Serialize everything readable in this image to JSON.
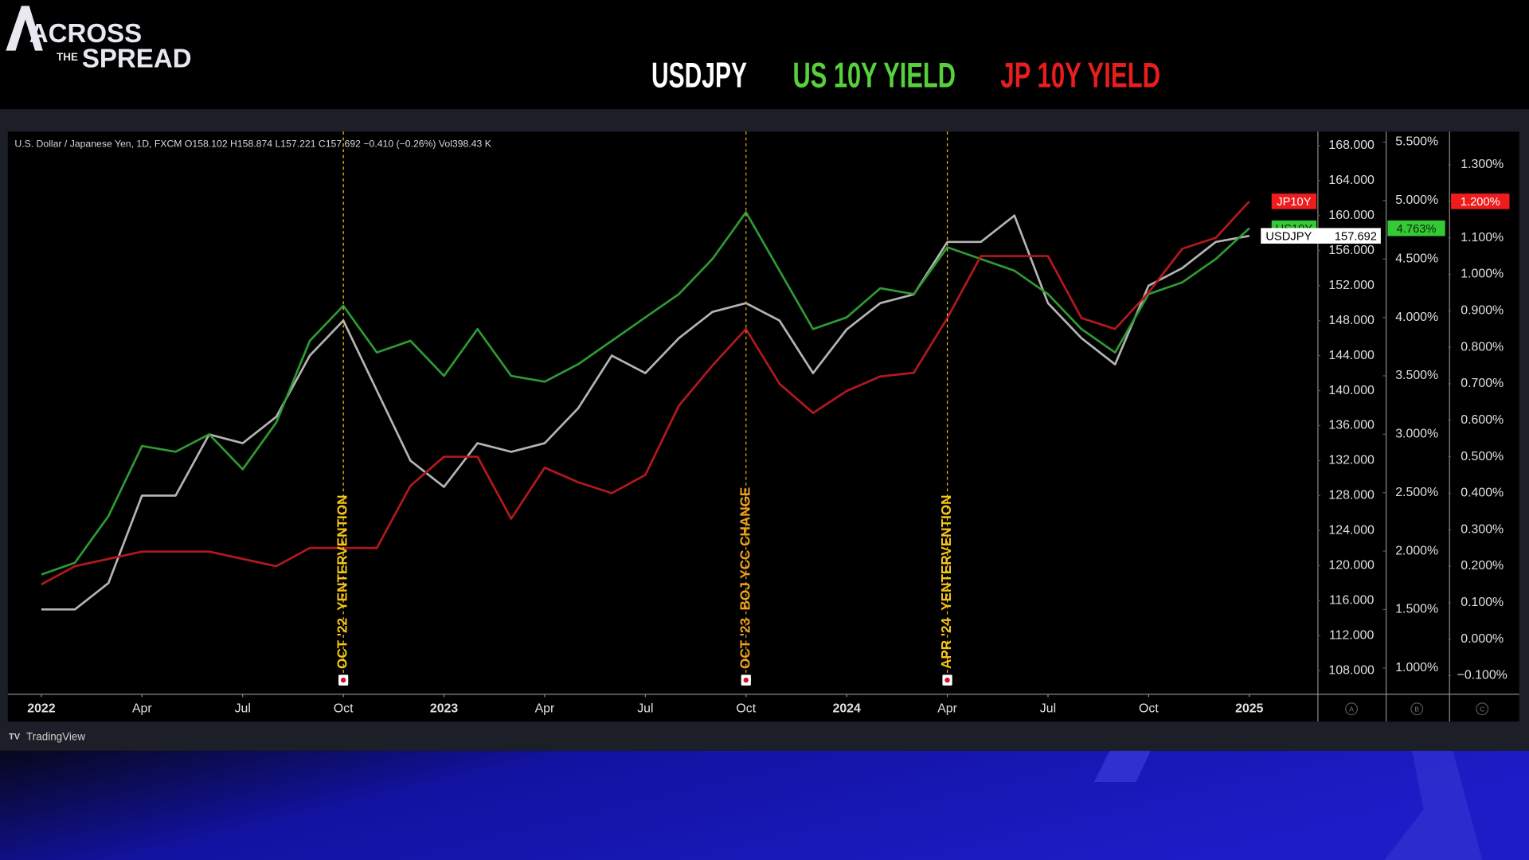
{
  "logo": {
    "line1": "ACROSS",
    "line2": "THE",
    "line3": "SPREAD"
  },
  "footer": "TradingView",
  "chart_data": {
    "type": "line",
    "info": "U.S. Dollar / Japanese Yen, 1D, FXCM  O158.102  H158.874  L157.221  C157.692  −0.410 (−0.26%)  Vol398.43 K",
    "x": [
      "2022-01",
      "2022-02",
      "2022-03",
      "2022-04",
      "2022-05",
      "2022-06",
      "2022-07",
      "2022-08",
      "2022-09",
      "2022-10",
      "2022-11",
      "2022-12",
      "2023-01",
      "2023-02",
      "2023-03",
      "2023-04",
      "2023-05",
      "2023-06",
      "2023-07",
      "2023-08",
      "2023-09",
      "2023-10",
      "2023-11",
      "2023-12",
      "2024-01",
      "2024-02",
      "2024-03",
      "2024-04",
      "2024-05",
      "2024-06",
      "2024-07",
      "2024-08",
      "2024-09",
      "2024-10",
      "2024-11",
      "2024-12",
      "2025-01"
    ],
    "xlim": [
      "2021-12",
      "2025-03"
    ],
    "xticks": [
      {
        "value": "2022-01",
        "label": "2022"
      },
      {
        "value": "2022-04",
        "label": "Apr"
      },
      {
        "value": "2022-07",
        "label": "Jul"
      },
      {
        "value": "2022-10",
        "label": "Oct"
      },
      {
        "value": "2023-01",
        "label": "2023"
      },
      {
        "value": "2023-04",
        "label": "Apr"
      },
      {
        "value": "2023-07",
        "label": "Jul"
      },
      {
        "value": "2023-10",
        "label": "Oct"
      },
      {
        "value": "2024-01",
        "label": "2024"
      },
      {
        "value": "2024-04",
        "label": "Apr"
      },
      {
        "value": "2024-07",
        "label": "Jul"
      },
      {
        "value": "2024-10",
        "label": "Oct"
      },
      {
        "value": "2025-01",
        "label": "2025"
      }
    ],
    "ylim": [
      105.3,
      169.6
    ],
    "yticks": [
      {
        "value": 108,
        "label": "108.000"
      },
      {
        "value": 112,
        "label": "112.000"
      },
      {
        "value": 116,
        "label": "116.000"
      },
      {
        "value": 120,
        "label": "120.000"
      },
      {
        "value": 124,
        "label": "124.000"
      },
      {
        "value": 128,
        "label": "128.000"
      },
      {
        "value": 132,
        "label": "132.000"
      },
      {
        "value": 136,
        "label": "136.000"
      },
      {
        "value": 140,
        "label": "140.000"
      },
      {
        "value": 144,
        "label": "144.000"
      },
      {
        "value": 148,
        "label": "148.000"
      },
      {
        "value": 152,
        "label": "152.000"
      },
      {
        "value": 156,
        "label": "156.000"
      },
      {
        "value": 160,
        "label": "160.000"
      },
      {
        "value": 164,
        "label": "164.000"
      },
      {
        "value": 168,
        "label": "168.000"
      }
    ],
    "y2lim": [
      0.775,
      5.59
    ],
    "y2ticks": [
      {
        "value": 1.0,
        "label": "1.000%"
      },
      {
        "value": 1.5,
        "label": "1.500%"
      },
      {
        "value": 2.0,
        "label": "2.000%"
      },
      {
        "value": 2.5,
        "label": "2.500%"
      },
      {
        "value": 3.0,
        "label": "3.000%"
      },
      {
        "value": 3.5,
        "label": "3.500%"
      },
      {
        "value": 4.0,
        "label": "4.000%"
      },
      {
        "value": 4.5,
        "label": "4.500%"
      },
      {
        "value": 5.0,
        "label": "5.000%"
      },
      {
        "value": 5.5,
        "label": "5.500%"
      }
    ],
    "y3lim": [
      -0.151,
      1.391
    ],
    "y3ticks": [
      {
        "value": -0.1,
        "label": "−0.100%"
      },
      {
        "value": 0,
        "label": "0.000%"
      },
      {
        "value": 0.1,
        "label": "0.100%"
      },
      {
        "value": 0.2,
        "label": "0.200%"
      },
      {
        "value": 0.3,
        "label": "0.300%"
      },
      {
        "value": 0.4,
        "label": "0.400%"
      },
      {
        "value": 0.5,
        "label": "0.500%"
      },
      {
        "value": 0.6,
        "label": "0.600%"
      },
      {
        "value": 0.7,
        "label": "0.700%"
      },
      {
        "value": 0.8,
        "label": "0.800%"
      },
      {
        "value": 0.9,
        "label": "0.900%"
      },
      {
        "value": 1.0,
        "label": "1.000%"
      },
      {
        "value": 1.1,
        "label": "1.100%"
      },
      {
        "value": 1.2,
        "label": "1.200%"
      },
      {
        "value": 1.3,
        "label": "1.300%"
      }
    ],
    "axis_badges": [
      "A",
      "B",
      "C"
    ],
    "series": [
      {
        "name": "USDJPY",
        "symbol": "USDJPY",
        "color": "#b4b4b4",
        "title_color": "#ffffff",
        "axis": "y",
        "values": [
          115,
          115,
          118,
          128,
          128,
          135,
          134,
          137,
          144,
          148,
          140,
          132,
          129,
          134,
          133,
          134,
          138,
          144,
          142,
          146,
          149,
          150,
          148,
          142,
          147,
          150,
          151,
          157,
          157,
          160,
          150,
          146,
          143,
          152,
          154,
          157,
          157.692
        ]
      },
      {
        "name": "US 10Y YIELD",
        "symbol": "US10Y",
        "color": "#2f9a33",
        "title_color": "#56d13c",
        "axis": "y2",
        "values": [
          1.8,
          1.9,
          2.3,
          2.9,
          2.85,
          3.0,
          2.7,
          3.1,
          3.8,
          4.1,
          3.7,
          3.8,
          3.5,
          3.9,
          3.5,
          3.45,
          3.6,
          3.8,
          4.0,
          4.2,
          4.5,
          4.9,
          4.4,
          3.9,
          4.0,
          4.25,
          4.2,
          4.6,
          4.5,
          4.4,
          4.2,
          3.9,
          3.7,
          4.2,
          4.3,
          4.5,
          4.763
        ],
        "value_labels": [
          null,
          null,
          null,
          null,
          null,
          null,
          null,
          null,
          null,
          null,
          null,
          null,
          null,
          null,
          null,
          null,
          null,
          null,
          null,
          null,
          null,
          null,
          null,
          null,
          null,
          null,
          null,
          null,
          null,
          null,
          null,
          null,
          null,
          null,
          null,
          null,
          "4.763%"
        ]
      },
      {
        "name": "JP 10Y YIELD",
        "symbol": "JP10Y",
        "color": "#b3191c",
        "title_color": "#e81d1d",
        "axis": "y3",
        "values": [
          0.15,
          0.2,
          0.22,
          0.24,
          0.24,
          0.24,
          0.22,
          0.2,
          0.25,
          0.25,
          0.25,
          0.42,
          0.5,
          0.5,
          0.33,
          0.47,
          0.43,
          0.4,
          0.45,
          0.64,
          0.75,
          0.85,
          0.7,
          0.62,
          0.68,
          0.72,
          0.73,
          0.88,
          1.05,
          1.05,
          1.05,
          0.88,
          0.85,
          0.95,
          1.07,
          1.1,
          1.2
        ],
        "value_labels": [
          null,
          null,
          null,
          null,
          null,
          null,
          null,
          null,
          null,
          null,
          null,
          null,
          null,
          null,
          null,
          null,
          null,
          null,
          null,
          null,
          null,
          null,
          null,
          null,
          null,
          null,
          null,
          null,
          null,
          null,
          null,
          null,
          null,
          null,
          null,
          null,
          "1.200%"
        ]
      }
    ],
    "annotations": [
      {
        "x": "2022-10",
        "text": "OCT '22  YENTERVENTION",
        "color": "#f5c518"
      },
      {
        "x": "2023-10",
        "text": "OCT '23  BOJ YCC CHANGE",
        "color": "#f0a21e"
      },
      {
        "x": "2024-04",
        "text": "APR '24  YENTERVENTION",
        "color": "#f5c518"
      }
    ]
  }
}
